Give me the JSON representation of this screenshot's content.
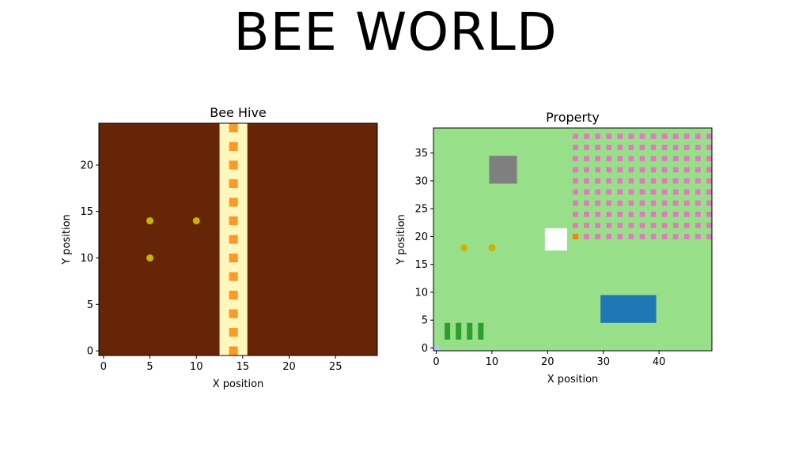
{
  "title": "BEE WORLD",
  "chart_data": [
    {
      "type": "heatmap",
      "title": "Bee Hive",
      "xlabel": "X position",
      "ylabel": "Y position",
      "xlim": [
        -0.5,
        29.5
      ],
      "ylim": [
        -0.5,
        24.5
      ],
      "xticks": [
        0,
        5,
        10,
        15,
        20,
        25
      ],
      "yticks": [
        0,
        5,
        10,
        15,
        20
      ],
      "background_color": "#662506",
      "regions": [
        {
          "x": [
            12.5,
            15.5
          ],
          "y": [
            -0.5,
            24.5
          ],
          "color": "#fff7bc"
        }
      ],
      "cells": {
        "color": "#fe9929",
        "points": [
          [
            14,
            0
          ],
          [
            14,
            2
          ],
          [
            14,
            4
          ],
          [
            14,
            6
          ],
          [
            14,
            8
          ],
          [
            14,
            10
          ],
          [
            14,
            12
          ],
          [
            14,
            14
          ],
          [
            14,
            16
          ],
          [
            14,
            18
          ],
          [
            14,
            20
          ],
          [
            14,
            22
          ],
          [
            14,
            24
          ]
        ]
      },
      "bees": {
        "color": "#c8b400",
        "points": [
          [
            5,
            14
          ],
          [
            10,
            14
          ],
          [
            5,
            10
          ]
        ]
      }
    },
    {
      "type": "heatmap",
      "title": "Property",
      "xlabel": "X position",
      "ylabel": "Y position",
      "xlim": [
        -0.5,
        49.5
      ],
      "ylim": [
        -0.5,
        39.5
      ],
      "xticks": [
        0,
        10,
        20,
        30,
        40
      ],
      "yticks": [
        0,
        5,
        10,
        15,
        20,
        25,
        30,
        35
      ],
      "background_color": "#98df8a",
      "regions": [
        {
          "x": [
            9.5,
            14.5
          ],
          "y": [
            29.5,
            34.5
          ],
          "color": "#7f7f7f"
        },
        {
          "x": [
            19.5,
            23.5
          ],
          "y": [
            17.5,
            21.5
          ],
          "color": "#ffffff"
        },
        {
          "x": [
            29.5,
            39.5
          ],
          "y": [
            4.5,
            9.5
          ],
          "color": "#1f77b4"
        },
        {
          "x": [
            1.5,
            2.5
          ],
          "y": [
            1.5,
            4.5
          ],
          "color": "#2ca02c"
        },
        {
          "x": [
            3.5,
            4.5
          ],
          "y": [
            1.5,
            4.5
          ],
          "color": "#2ca02c"
        },
        {
          "x": [
            5.5,
            6.5
          ],
          "y": [
            1.5,
            4.5
          ],
          "color": "#2ca02c"
        },
        {
          "x": [
            7.5,
            8.5
          ],
          "y": [
            1.5,
            4.5
          ],
          "color": "#2ca02c"
        },
        {
          "x": [
            24.5,
            25.5
          ],
          "y": [
            19.5,
            20.5
          ],
          "color": "#ff7f0e"
        },
        {
          "x": [
            -0.5,
            0.5
          ],
          "y": [
            -0.5,
            0.5
          ],
          "color": "#aec7e8"
        }
      ],
      "flowers": {
        "color": "#e377c2",
        "x": [
          25,
          27,
          29,
          31,
          33,
          35,
          37,
          39,
          41,
          43,
          45,
          47,
          49
        ],
        "y": [
          20,
          22,
          24,
          26,
          28,
          30,
          32,
          34,
          36,
          38
        ],
        "skip": [
          [
            25,
            20
          ]
        ]
      },
      "bees": {
        "color": "#c8b400",
        "points": [
          [
            5,
            18
          ],
          [
            10,
            18
          ]
        ]
      }
    }
  ]
}
